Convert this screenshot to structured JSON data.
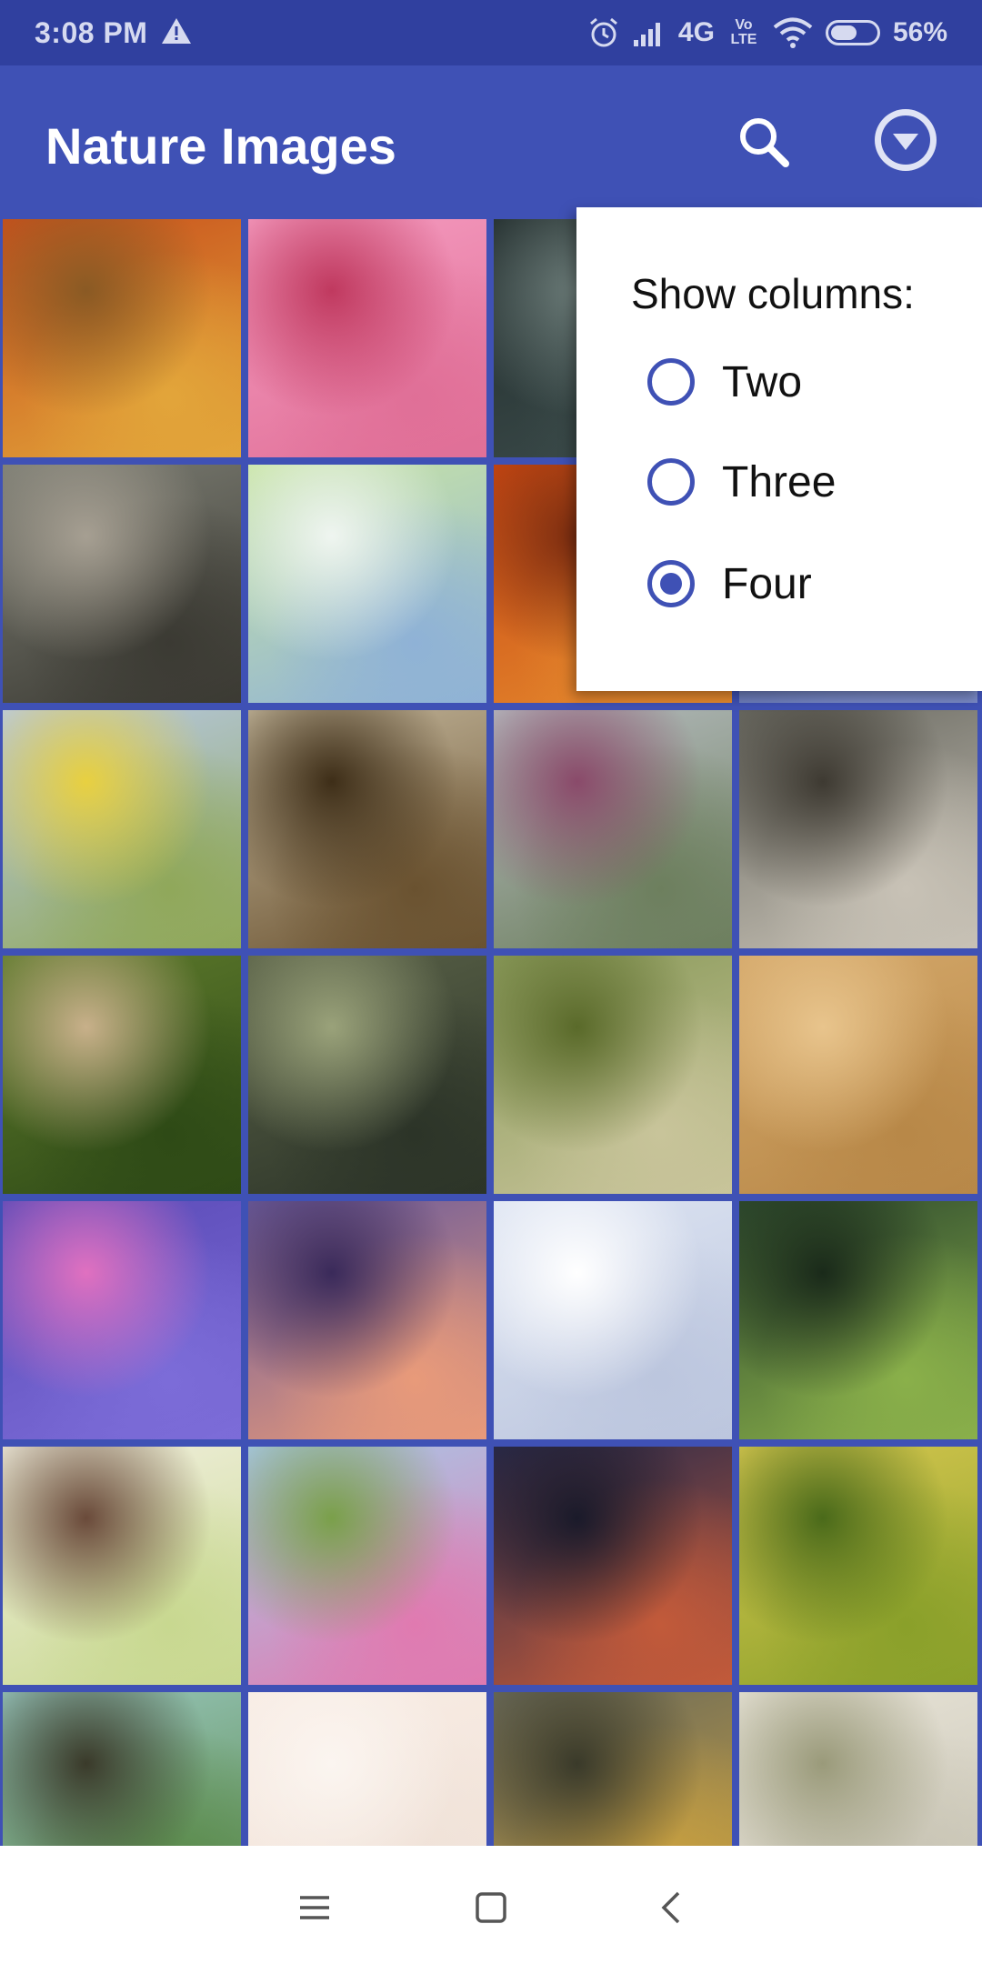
{
  "status_bar": {
    "time": "3:08 PM",
    "network": "4G",
    "volte": "Vo LTE",
    "battery": "56%",
    "battery_level": 0.56
  },
  "app_bar": {
    "title": "Nature Images",
    "search_icon": "search-icon",
    "dropdown_icon": "dropdown-icon"
  },
  "grid": {
    "columns": 4,
    "tiles": [
      {
        "name": "autumn-forest-path",
        "colors": [
          "#c8501c",
          "#e2a53a",
          "#8a5a24"
        ]
      },
      {
        "name": "pink-daisy",
        "colors": [
          "#f59cc0",
          "#e06f97",
          "#c0395f"
        ]
      },
      {
        "name": "dark-forest",
        "colors": [
          "#1f2a2a",
          "#3d4d4c",
          "#6a7a77"
        ]
      },
      {
        "name": "autumn-road",
        "colors": [
          "#a2451c",
          "#d6773e",
          "#f0b070"
        ]
      },
      {
        "name": "lake-island-trees",
        "colors": [
          "#7c7d73",
          "#3b3a33",
          "#a69f92"
        ]
      },
      {
        "name": "bird-blossom",
        "colors": [
          "#c9e5a5",
          "#8fb2d6",
          "#eff5f0"
        ]
      },
      {
        "name": "autumn-trees",
        "colors": [
          "#c84612",
          "#e58a2e",
          "#7a2c10"
        ]
      },
      {
        "name": "blue-lake",
        "colors": [
          "#4a5a9a",
          "#7b8bc8",
          "#2e3670"
        ]
      },
      {
        "name": "butterflies-flowers",
        "colors": [
          "#b8c9e6",
          "#90a85a",
          "#e8d040"
        ]
      },
      {
        "name": "big-tree",
        "colors": [
          "#c4b79c",
          "#6a5230",
          "#3e2e18"
        ]
      },
      {
        "name": "mountain-path",
        "colors": [
          "#b6bcc0",
          "#6d7f5e",
          "#8a4a6a"
        ]
      },
      {
        "name": "wolf",
        "colors": [
          "#6a6a62",
          "#c8c2b6",
          "#3e3a32"
        ]
      },
      {
        "name": "tree-avenue",
        "colors": [
          "#5e7a2c",
          "#2e4a16",
          "#c8b08a"
        ]
      },
      {
        "name": "hills-clouds",
        "colors": [
          "#5a6248",
          "#2c3428",
          "#9aa27a"
        ]
      },
      {
        "name": "misty-forest",
        "colors": [
          "#8a9a5a",
          "#c8c49a",
          "#5a6a2a"
        ]
      },
      {
        "name": "sand-starfish",
        "colors": [
          "#d4a86a",
          "#b88848",
          "#e8c48c"
        ]
      },
      {
        "name": "water-lily",
        "colors": [
          "#5a4ab6",
          "#7c6cd8",
          "#e070c0"
        ]
      },
      {
        "name": "sunset-lake",
        "colors": [
          "#6a5a9a",
          "#e89a7a",
          "#3a2a5a"
        ]
      },
      {
        "name": "arctic-fox",
        "colors": [
          "#dde4f2",
          "#bcc6de",
          "#ffffff"
        ]
      },
      {
        "name": "sun-rays-forest",
        "colors": [
          "#2e4a2e",
          "#8ab04a",
          "#1a2a1a"
        ]
      },
      {
        "name": "girl-hat-meadow",
        "colors": [
          "#f2f0e0",
          "#c8d890",
          "#6a4a3a"
        ]
      },
      {
        "name": "cosmos-flowers",
        "colors": [
          "#a8c8e8",
          "#e07ab0",
          "#7aa04a"
        ]
      },
      {
        "name": "storm-clouds",
        "colors": [
          "#2a2a4a",
          "#c25a3a",
          "#1a1a2a"
        ]
      },
      {
        "name": "wheat-field",
        "colors": [
          "#d8c850",
          "#8aa02a",
          "#4a6a1a"
        ]
      },
      {
        "name": "leaf-umbrella-kids",
        "colors": [
          "#9ac8c0",
          "#5a8a4a",
          "#3a3a2a"
        ]
      },
      {
        "name": "pale-sky",
        "colors": [
          "#f8ece4",
          "#f0e2d8",
          "#fbf5f0"
        ]
      },
      {
        "name": "valley-sunset",
        "colors": [
          "#6a6a5a",
          "#c8a040",
          "#3a3a2a"
        ]
      },
      {
        "name": "cloudy-sky",
        "colors": [
          "#e8e4d8",
          "#c8c4b4",
          "#9a9a7a"
        ]
      }
    ]
  },
  "popup": {
    "heading": "Show columns:",
    "options": [
      {
        "label": "Two",
        "checked": false
      },
      {
        "label": "Three",
        "checked": false
      },
      {
        "label": "Four",
        "checked": true
      }
    ]
  },
  "nav_bar": {
    "menu_icon": "menu-icon",
    "home_icon": "home-icon",
    "back_icon": "back-icon"
  },
  "colors": {
    "primary": "#3f51b5",
    "primary_dark": "#30409f",
    "surface": "#ffffff"
  }
}
